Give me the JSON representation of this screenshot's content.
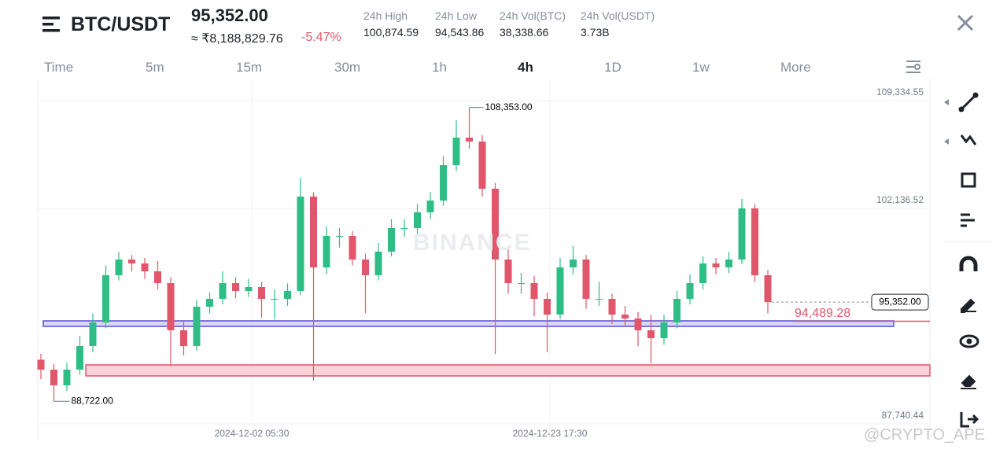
{
  "header": {
    "pair": "BTC/USDT",
    "price": "95,352.00",
    "fiat": "≈ ₹8,188,829.76",
    "change": "-5.47%",
    "stats": [
      {
        "label": "24h High",
        "value": "100,874.59"
      },
      {
        "label": "24h Low",
        "value": "94,543.86"
      },
      {
        "label": "24h Vol(BTC)",
        "value": "38,338.66"
      },
      {
        "label": "24h Vol(USDT)",
        "value": "3.73B"
      }
    ]
  },
  "tabs": [
    "Time",
    "5m",
    "15m",
    "30m",
    "1h",
    "4h",
    "1D",
    "1w",
    "More"
  ],
  "active_tab": "4h",
  "watermark": "BINANCE",
  "credit": "@CRYPTO_APE",
  "chart": {
    "type": "candlestick",
    "up_color": "#2ebd85",
    "down_color": "#e0566b",
    "ylim": [
      87162,
      110280
    ],
    "yticks": [
      {
        "value": 109334.55,
        "label": "109,334.55"
      },
      {
        "value": 102136.52,
        "label": "102,136.52"
      },
      {
        "value": 87740.44,
        "label": "87,740.44"
      }
    ],
    "x_labels": [
      "2024-12-02 05:30",
      "2024-12-23 17:30"
    ],
    "candles": [
      [
        91500,
        91900,
        90200,
        90840
      ],
      [
        90840,
        91200,
        88722,
        89790
      ],
      [
        89790,
        91300,
        89400,
        90840
      ],
      [
        90840,
        93100,
        90500,
        92417
      ],
      [
        92417,
        94600,
        92000,
        93993
      ],
      [
        93993,
        97800,
        93600,
        97146
      ],
      [
        97146,
        98700,
        96800,
        98196
      ],
      [
        98196,
        98500,
        97400,
        97933
      ],
      [
        97933,
        98300,
        96900,
        97408
      ],
      [
        97408,
        98100,
        96200,
        96620
      ],
      [
        96620,
        97000,
        91103,
        93468
      ],
      [
        93468,
        94100,
        91800,
        92417
      ],
      [
        92417,
        95500,
        92100,
        95044
      ],
      [
        95044,
        96000,
        94600,
        95569
      ],
      [
        95569,
        97400,
        95200,
        96620
      ],
      [
        96620,
        97000,
        95600,
        96095
      ],
      [
        96095,
        96900,
        95700,
        96357
      ],
      [
        96357,
        96700,
        94300,
        95569
      ],
      [
        95569,
        96200,
        94200,
        95569
      ],
      [
        95569,
        96600,
        95100,
        96095
      ],
      [
        96095,
        103660,
        95800,
        102400
      ],
      [
        102400,
        102700,
        90104,
        97671
      ],
      [
        97671,
        100400,
        97200,
        99772
      ],
      [
        99772,
        100300,
        99000,
        99772
      ],
      [
        99772,
        100100,
        97800,
        98196
      ],
      [
        98196,
        98600,
        94600,
        97146
      ],
      [
        97146,
        99300,
        96800,
        98722
      ],
      [
        98722,
        100900,
        98400,
        100298
      ],
      [
        100298,
        100900,
        99700,
        100298
      ],
      [
        100298,
        101900,
        99900,
        101349
      ],
      [
        101349,
        102700,
        100900,
        102137
      ],
      [
        102137,
        105100,
        101800,
        104501
      ],
      [
        104501,
        107500,
        104100,
        106340
      ],
      [
        106340,
        108353,
        105600,
        106077
      ],
      [
        106077,
        106500,
        102400,
        102925
      ],
      [
        102925,
        103300,
        91891,
        98196
      ],
      [
        98196,
        98900,
        95900,
        96620
      ],
      [
        96620,
        97300,
        95900,
        96620
      ],
      [
        96620,
        97100,
        94400,
        95569
      ],
      [
        95569,
        96000,
        92000,
        94519
      ],
      [
        94519,
        98300,
        94200,
        97671
      ],
      [
        97671,
        99100,
        97200,
        98196
      ],
      [
        98196,
        98500,
        94900,
        95569
      ],
      [
        95569,
        96700,
        95100,
        95569
      ],
      [
        95569,
        95900,
        93900,
        94519
      ],
      [
        94519,
        95100,
        93700,
        94256
      ],
      [
        94256,
        94700,
        92400,
        93468
      ],
      [
        93468,
        94500,
        91260,
        92943
      ],
      [
        92943,
        94500,
        92500,
        93993
      ],
      [
        93993,
        96100,
        93600,
        95569
      ],
      [
        95569,
        97200,
        95200,
        96620
      ],
      [
        96620,
        98400,
        96200,
        97933
      ],
      [
        97933,
        98300,
        97200,
        97671
      ],
      [
        97671,
        98700,
        97300,
        98196
      ],
      [
        98196,
        102242,
        97900,
        101612
      ],
      [
        101612,
        101900,
        96700,
        97146
      ],
      [
        97146,
        97500,
        94600,
        95352
      ]
    ],
    "high_marker": {
      "value": 108353,
      "label": "108,353.00",
      "index": 33
    },
    "low_marker": {
      "value": 88722,
      "label": "88,722.00",
      "index": 1
    },
    "zones": [
      {
        "top": 94098,
        "bottom": 93730,
        "color": "#5b4fd6",
        "fill": "#d9d6f7"
      },
      {
        "top": 91156,
        "bottom": 90420,
        "color": "#e0566b",
        "fill": "#f9d3d8"
      }
    ],
    "drawn_line": {
      "value": 94489.28,
      "label": "94,489.28",
      "color": "#e0566b"
    },
    "last_price": {
      "value": 95352,
      "label": "95,352.00"
    }
  }
}
